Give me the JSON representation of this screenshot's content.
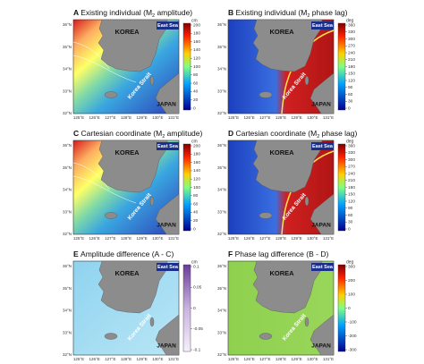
{
  "panels": [
    {
      "letter": "A",
      "title_main": "Existing individual (M",
      "title_sub": "2",
      "title_end": " amplitude)",
      "unit": "cm",
      "colorbar_ticks": [
        200,
        180,
        160,
        140,
        120,
        100,
        80,
        60,
        40,
        20,
        0
      ],
      "labels": {
        "korea": "KOREA",
        "east_sea": "East Sea",
        "strait": "Korea Strait",
        "japan": "JAPAN"
      }
    },
    {
      "letter": "B",
      "title_main": "Existing individual (M",
      "title_sub": "2",
      "title_end": " phase lag)",
      "unit": "deg",
      "colorbar_ticks": [
        360,
        330,
        300,
        270,
        240,
        210,
        180,
        150,
        120,
        90,
        60,
        30,
        0
      ],
      "labels": {
        "korea": "KOREA",
        "east_sea": "East Sea",
        "strait": "Korea Strait",
        "japan": "JAPAN"
      }
    },
    {
      "letter": "C",
      "title_main": "Cartesian coordinate (M",
      "title_sub": "2",
      "title_end": " amplitude)",
      "unit": "cm",
      "colorbar_ticks": [
        200,
        180,
        160,
        140,
        120,
        100,
        80,
        60,
        40,
        20,
        0
      ],
      "labels": {
        "korea": "KOREA",
        "east_sea": "East Sea",
        "strait": "Korea Strait",
        "japan": "JAPAN"
      }
    },
    {
      "letter": "D",
      "title_main": "Cartesian coordinate (M",
      "title_sub": "2",
      "title_end": " phase lag)",
      "unit": "deg",
      "colorbar_ticks": [
        360,
        330,
        300,
        270,
        240,
        210,
        180,
        150,
        120,
        90,
        60,
        30,
        0
      ],
      "labels": {
        "korea": "KOREA",
        "east_sea": "East Sea",
        "strait": "Korea Strait",
        "japan": "JAPAN"
      }
    },
    {
      "letter": "E",
      "title_main": "Amplitude difference (A - C)",
      "unit": "cm",
      "colorbar_ticks": [
        0.1,
        0.05,
        0,
        -0.05,
        -0.1
      ],
      "labels": {
        "korea": "KOREA",
        "east_sea": "East Sea",
        "strait": "Korea Strait",
        "japan": "JAPAN"
      }
    },
    {
      "letter": "F",
      "title_main": "Phase lag difference (B - D)",
      "unit": "deg",
      "colorbar_ticks": [
        300,
        200,
        100,
        0,
        -100,
        -200,
        -300
      ],
      "labels": {
        "korea": "KOREA",
        "east_sea": "East Sea",
        "strait": "Korea Strait",
        "japan": "JAPAN"
      }
    }
  ],
  "lat_labels": [
    "36°N",
    "35°N",
    "34°N",
    "33°N",
    "32°N"
  ],
  "lon_labels": [
    "125°E",
    "126°E",
    "127°E",
    "128°E",
    "129°E",
    "130°E",
    "131°E"
  ]
}
